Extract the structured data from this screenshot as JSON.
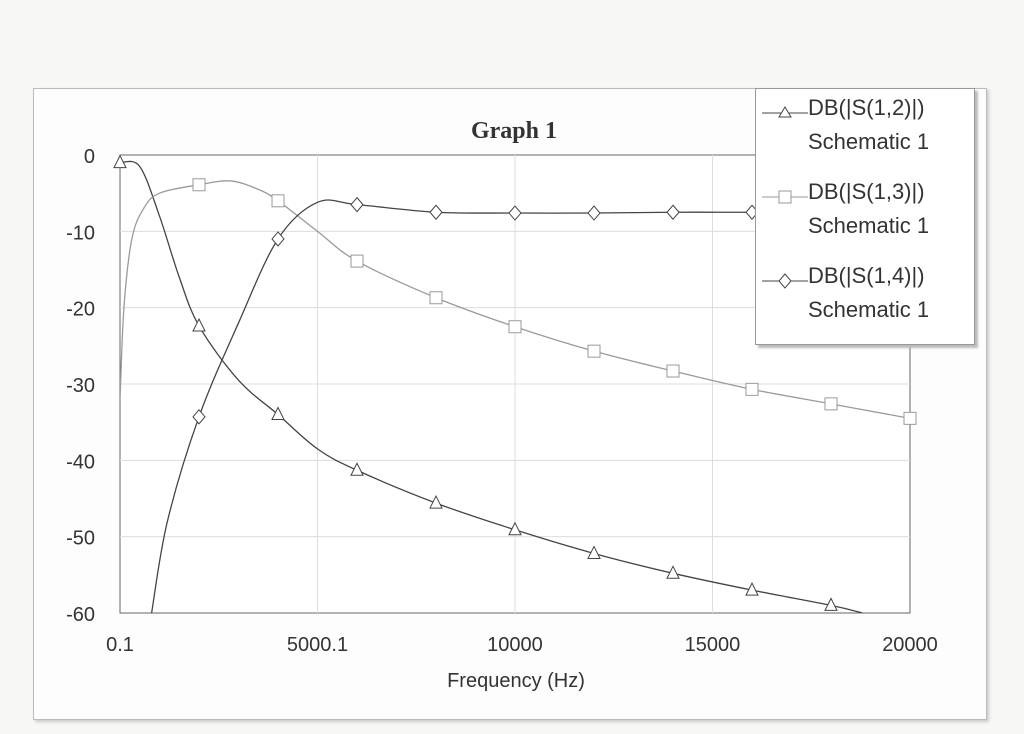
{
  "chart_data": {
    "type": "line",
    "title": "Graph 1",
    "xlabel": "Frequency (Hz)",
    "ylabel": "",
    "xlim": [
      0.1,
      20000
    ],
    "ylim": [
      -60,
      0
    ],
    "xticks": [
      0.1,
      5000.1,
      10000,
      15000,
      20000
    ],
    "xtick_labels": [
      "0.1",
      "5000.1",
      "10000",
      "15000",
      "20000"
    ],
    "yticks": [
      0,
      -10,
      -20,
      -30,
      -40,
      -50,
      -60
    ],
    "ytick_labels": [
      "0",
      "-10",
      "-20",
      "-30",
      "-40",
      "-50",
      "-60"
    ],
    "grid": true,
    "legend_placement": "top-right",
    "series": [
      {
        "name": "DB(|S(1,2)|)",
        "source": "Schematic 1",
        "marker": "triangle",
        "color": "#444444",
        "x": [
          0.1,
          500,
          1000,
          1500,
          2000,
          3000,
          4000,
          5000,
          6000,
          8000,
          10000,
          12000,
          14000,
          16000,
          18000,
          18800
        ],
        "y": [
          -1,
          -1.5,
          -8,
          -16,
          -22.4,
          -29.5,
          -34,
          -38.5,
          -41.3,
          -45.6,
          -49.1,
          -52.2,
          -54.8,
          -57,
          -59,
          -60
        ],
        "marker_x": [
          0.1,
          2000,
          4000,
          6000,
          8000,
          10000,
          12000,
          14000,
          16000,
          18000
        ]
      },
      {
        "name": "DB(|S(1,3)|)",
        "source": "Schematic 1",
        "marker": "square",
        "color": "#9a9a9a",
        "x": [
          0.1,
          100,
          300,
          600,
          1000,
          2000,
          2800,
          3500,
          4000,
          5000,
          6000,
          8000,
          10000,
          12000,
          14000,
          16000,
          18000,
          20000
        ],
        "y": [
          -32,
          -20,
          -11,
          -7,
          -5,
          -3.9,
          -3.4,
          -4.5,
          -6,
          -10,
          -13.9,
          -18.7,
          -22.5,
          -25.7,
          -28.3,
          -30.7,
          -32.6,
          -34.5
        ],
        "marker_x": [
          2000,
          4000,
          6000,
          8000,
          10000,
          12000,
          14000,
          16000,
          18000,
          20000
        ]
      },
      {
        "name": "DB(|S(1,4)|)",
        "source": "Schematic 1",
        "marker": "diamond",
        "color": "#444444",
        "x": [
          800,
          1200,
          2000,
          3000,
          4000,
          5000,
          6000,
          8000,
          10000,
          12000,
          14000,
          16000,
          18000,
          20000
        ],
        "y": [
          -60,
          -48,
          -34.3,
          -22,
          -11,
          -6.2,
          -6.5,
          -7.5,
          -7.6,
          -7.6,
          -7.5,
          -7.5,
          -7.5,
          -7.5
        ],
        "marker_x": [
          2000,
          4000,
          6000,
          8000,
          10000,
          12000,
          14000,
          16000
        ]
      }
    ]
  }
}
